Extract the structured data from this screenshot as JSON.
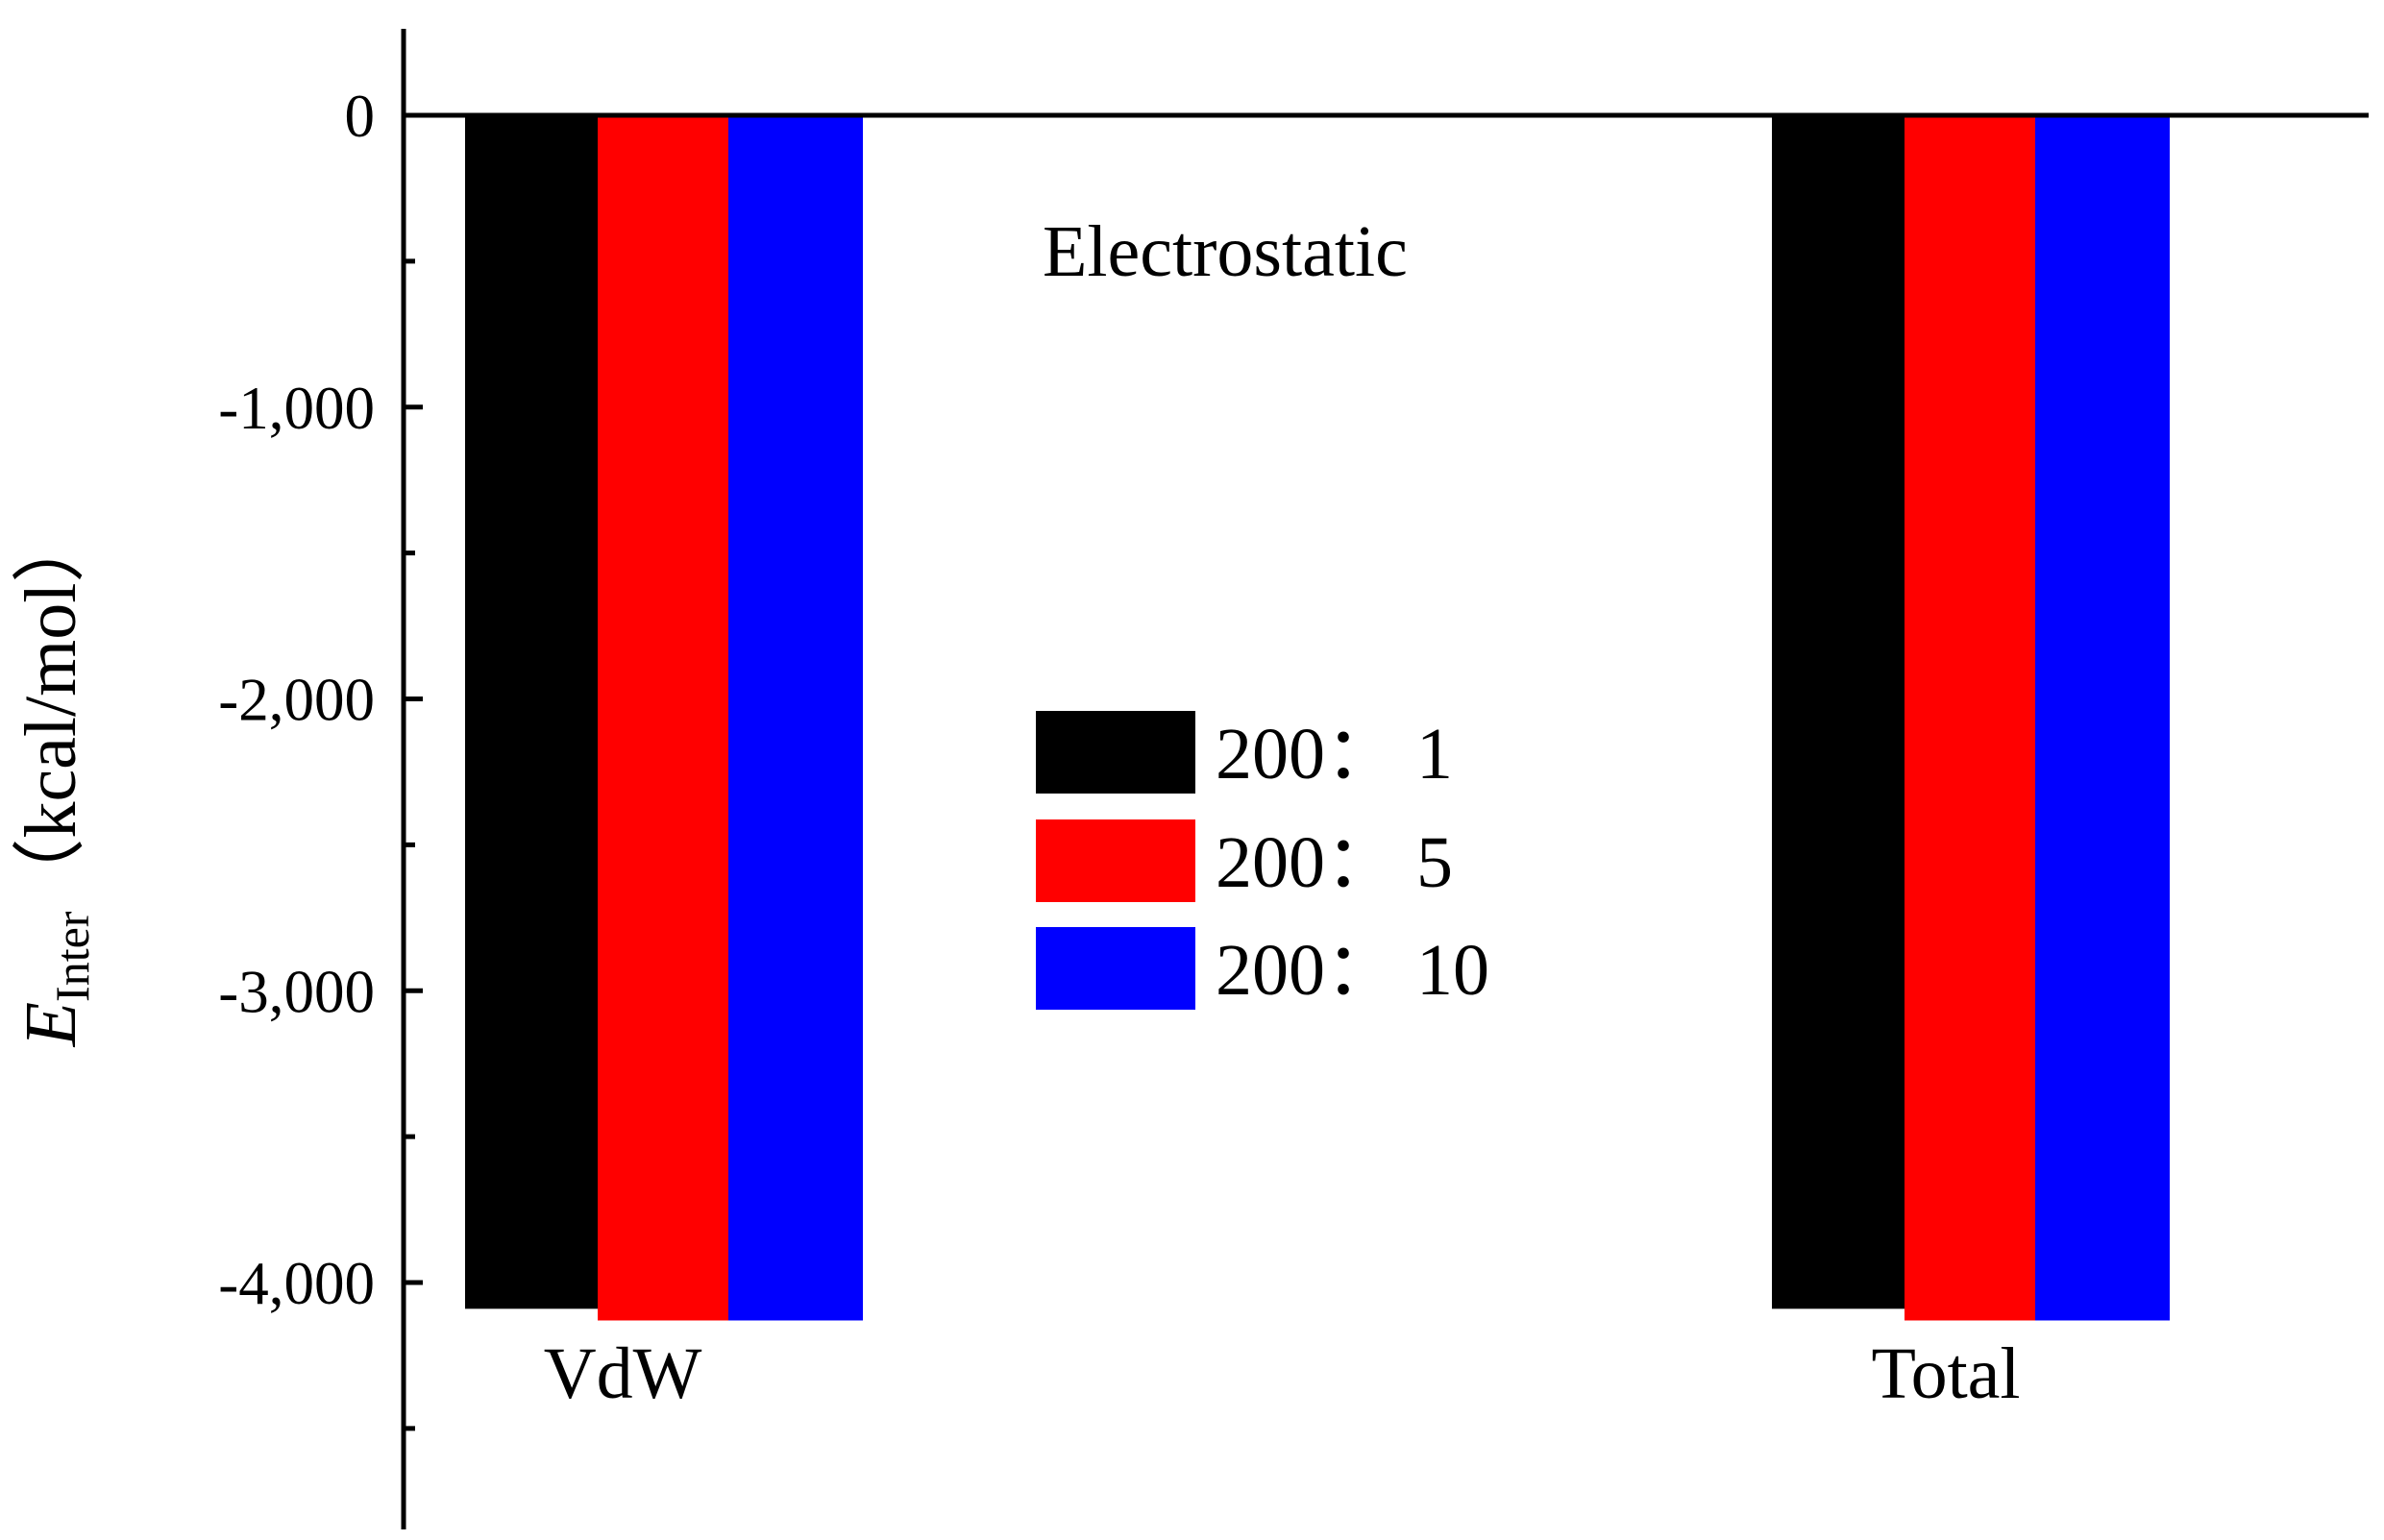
{
  "chart_data": {
    "type": "bar",
    "categories": [
      "VdW",
      "Electrostatic",
      "Total"
    ],
    "series": [
      {
        "name": "200： 1",
        "color": "#000000",
        "values": [
          -4090,
          0,
          -4090
        ]
      },
      {
        "name": "200： 5",
        "color": "#ff0000",
        "values": [
          -4130,
          0,
          -4130
        ]
      },
      {
        "name": "200： 10",
        "color": "#0000ff",
        "values": [
          -4130,
          0,
          -4130
        ]
      }
    ],
    "ylabel_main": "E",
    "ylabel_sub": "Inter",
    "ylabel_unit": "（kcal/mol）",
    "ylim": [
      -4900,
      330
    ],
    "yticks": [
      {
        "value": 0,
        "label": "0"
      },
      {
        "value": -1000,
        "label": "-1,000"
      },
      {
        "value": -2000,
        "label": "-2,000"
      },
      {
        "value": -3000,
        "label": "-3,000"
      },
      {
        "value": -4000,
        "label": "-4,000"
      }
    ],
    "minor_ticks": [
      -500,
      -1500,
      -2500,
      -3500,
      -4500
    ],
    "grid": false,
    "legend_position": "center"
  }
}
